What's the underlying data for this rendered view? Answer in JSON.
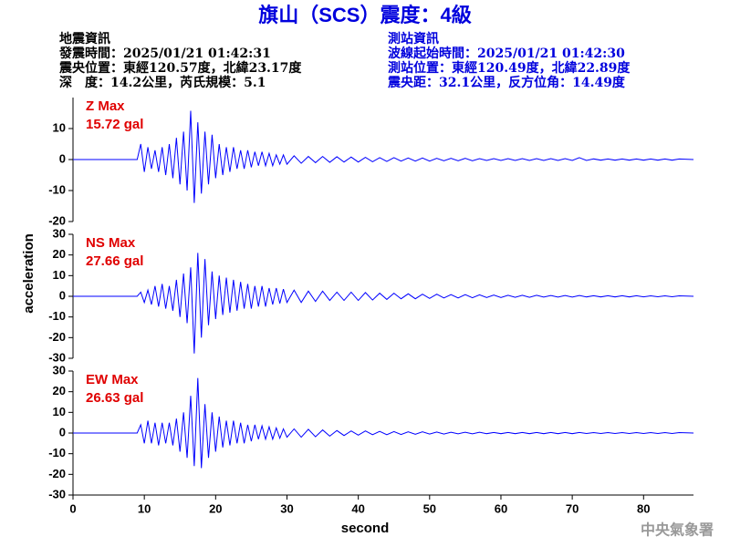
{
  "header": {
    "title": "旗山（SCS）震度：4級",
    "left": [
      "地震資訊",
      "發震時間：2025/01/21 01:42:31",
      "震央位置：東經120.57度，北緯23.17度",
      "深　度：14.2公里，芮氏規模：5.1"
    ],
    "right": [
      "測站資訊",
      "波線起始時間：2025/01/21 01:42:30",
      "測站位置：東經120.49度，北緯22.89度",
      "震央距：32.1公里，反方位角：14.49度"
    ]
  },
  "footer": "中央氣象署",
  "chart_data": [
    {
      "type": "line",
      "annotation": [
        "Z Max",
        "15.72 gal"
      ],
      "color": "#0000ff",
      "x": [
        0,
        9,
        9.5,
        10,
        10.5,
        11,
        11.5,
        12,
        12.5,
        13,
        13.5,
        14,
        14.5,
        15,
        15.5,
        16,
        16.5,
        17,
        17.5,
        18,
        18.5,
        19,
        19.5,
        20,
        20.5,
        21,
        21.5,
        22,
        22.5,
        23,
        23.5,
        24,
        24.5,
        25,
        25.5,
        26,
        26.5,
        27,
        27.5,
        28,
        28.5,
        29,
        29.5,
        30,
        31,
        32,
        33,
        34,
        35,
        36,
        37,
        38,
        39,
        40,
        41,
        42,
        43,
        44,
        45,
        46,
        47,
        48,
        49,
        50,
        51,
        52,
        53,
        54,
        55,
        56,
        57,
        58,
        59,
        60,
        61,
        62,
        63,
        64,
        65,
        66,
        67,
        68,
        69,
        70,
        71,
        72,
        73,
        74,
        75,
        76,
        77,
        78,
        79,
        80,
        81,
        82,
        83,
        84,
        85,
        87
      ],
      "values": [
        0,
        0,
        5,
        -4,
        4,
        -3,
        3,
        -4,
        4,
        -5,
        5,
        -6,
        7,
        -8,
        9,
        -10,
        15.72,
        -14,
        12,
        -11,
        9,
        -8,
        8,
        -6,
        5,
        -5,
        4,
        -4,
        4,
        -3,
        3,
        -3,
        3,
        -2.5,
        2.5,
        -2,
        2.5,
        -2,
        2,
        -2,
        1.5,
        -1.5,
        1.5,
        -1.5,
        1.2,
        -1.2,
        1,
        -1,
        1,
        -0.9,
        0.9,
        -0.8,
        0.8,
        -0.8,
        0.7,
        -0.7,
        0.6,
        -0.6,
        0.6,
        -0.5,
        0.5,
        -0.5,
        0.5,
        -0.5,
        0.4,
        -0.4,
        0.4,
        -0.4,
        0.4,
        -0.4,
        0.3,
        -0.3,
        0.3,
        -0.3,
        0.3,
        -0.3,
        0.3,
        -0.3,
        0.3,
        -0.3,
        0.3,
        -0.3,
        0.3,
        -0.3,
        0.6,
        -0.3,
        0.2,
        -0.2,
        0.2,
        -0.2,
        0.2,
        -0.2,
        0.2,
        -0.2,
        0.2,
        -0.2,
        0.2,
        -0.2,
        0.2,
        0
      ],
      "xlim": [
        0,
        87
      ],
      "ylim": [
        -20,
        20
      ],
      "yticks": [
        -20,
        -10,
        0,
        10
      ]
    },
    {
      "type": "line",
      "annotation": [
        "NS Max",
        "27.66 gal"
      ],
      "color": "#0000ff",
      "ylabel": "acceleration",
      "x": [
        0,
        9,
        9.5,
        10,
        10.5,
        11,
        11.5,
        12,
        12.5,
        13,
        13.5,
        14,
        14.5,
        15,
        15.5,
        16,
        16.5,
        17,
        17.5,
        18,
        18.5,
        19,
        19.5,
        20,
        20.5,
        21,
        21.5,
        22,
        22.5,
        23,
        23.5,
        24,
        24.5,
        25,
        25.5,
        26,
        26.5,
        27,
        27.5,
        28,
        28.5,
        29,
        29.5,
        30,
        31,
        32,
        33,
        34,
        35,
        36,
        37,
        38,
        39,
        40,
        41,
        42,
        43,
        44,
        45,
        46,
        47,
        48,
        49,
        50,
        51,
        52,
        53,
        54,
        55,
        56,
        57,
        58,
        59,
        60,
        61,
        62,
        63,
        64,
        65,
        66,
        67,
        68,
        69,
        70,
        71,
        72,
        73,
        74,
        75,
        76,
        77,
        78,
        79,
        80,
        81,
        82,
        83,
        84,
        85,
        87
      ],
      "values": [
        0,
        0,
        2,
        -3,
        3,
        -4,
        5,
        -5,
        6,
        -6,
        5,
        -7,
        8,
        -10,
        11,
        -13,
        14,
        -27.66,
        21,
        -20,
        18,
        -14,
        12,
        -11,
        10,
        -9,
        9,
        -8,
        8,
        -7,
        7,
        -6,
        6,
        -6,
        5,
        -5,
        5,
        -5,
        4,
        -4,
        4,
        -3.5,
        3.5,
        -3,
        3,
        -3,
        2.5,
        -2.5,
        2.5,
        -2,
        2,
        -2,
        2,
        -2,
        1.8,
        -1.8,
        1.5,
        -1.5,
        1.5,
        -1.2,
        1.2,
        -1.2,
        1,
        -1,
        1,
        -0.8,
        0.8,
        -0.8,
        0.8,
        -0.7,
        0.7,
        -0.6,
        0.6,
        -0.6,
        0.5,
        -0.5,
        0.5,
        -0.5,
        0.5,
        -0.4,
        0.4,
        -0.4,
        0.4,
        -0.4,
        0.4,
        -0.3,
        0.3,
        -0.3,
        0.3,
        -0.3,
        0.3,
        -0.3,
        0.3,
        -0.3,
        0.2,
        -0.2,
        0.2,
        -0.2,
        0.2,
        0
      ],
      "xlim": [
        0,
        87
      ],
      "ylim": [
        -30,
        30
      ],
      "yticks": [
        -30,
        -20,
        -10,
        0,
        10,
        20,
        30
      ]
    },
    {
      "type": "line",
      "annotation": [
        "EW Max",
        "26.63 gal"
      ],
      "color": "#0000ff",
      "xlabel": "second",
      "x": [
        0,
        9,
        9.5,
        10,
        10.5,
        11,
        11.5,
        12,
        12.5,
        13,
        13.5,
        14,
        14.5,
        15,
        15.5,
        16,
        16.5,
        17,
        17.5,
        18,
        18.5,
        19,
        19.5,
        20,
        20.5,
        21,
        21.5,
        22,
        22.5,
        23,
        23.5,
        24,
        24.5,
        25,
        25.5,
        26,
        26.5,
        27,
        27.5,
        28,
        28.5,
        29,
        29.5,
        30,
        31,
        32,
        33,
        34,
        35,
        36,
        37,
        38,
        39,
        40,
        41,
        42,
        43,
        44,
        45,
        46,
        47,
        48,
        49,
        50,
        51,
        52,
        53,
        54,
        55,
        56,
        57,
        58,
        59,
        60,
        61,
        62,
        63,
        64,
        65,
        66,
        67,
        68,
        69,
        70,
        71,
        72,
        73,
        74,
        75,
        76,
        77,
        78,
        79,
        80,
        81,
        82,
        83,
        84,
        85,
        87
      ],
      "values": [
        0,
        0,
        4,
        -5,
        6,
        -5,
        5,
        -6,
        5,
        -5,
        5,
        -6,
        7,
        -9,
        10,
        -12,
        18,
        -16,
        26.63,
        -17,
        14,
        -12,
        10,
        -9,
        8,
        -7,
        6,
        -6,
        6,
        -5,
        5,
        -5,
        4,
        -4,
        4,
        -3,
        3.5,
        -3,
        3,
        -3,
        2.5,
        -2.5,
        2,
        -2,
        2,
        -2,
        1.8,
        -1.8,
        1.5,
        -1.5,
        1.2,
        -1.2,
        1,
        -1,
        1,
        -0.8,
        0.8,
        -0.8,
        0.7,
        -0.7,
        0.6,
        -0.6,
        0.6,
        -0.5,
        0.5,
        -0.5,
        0.4,
        -0.4,
        0.4,
        -0.4,
        0.4,
        -0.3,
        0.3,
        -0.3,
        0.3,
        -0.3,
        0.3,
        -0.3,
        0.3,
        -0.3,
        0.3,
        -0.3,
        0.3,
        -0.3,
        0.3,
        -0.2,
        0.2,
        -0.2,
        0.2,
        -0.2,
        0.2,
        -0.2,
        0.2,
        -0.2,
        0.2,
        -0.2,
        0.2,
        -0.2,
        0.2,
        0
      ],
      "xlim": [
        0,
        87
      ],
      "ylim": [
        -30,
        30
      ],
      "yticks": [
        -30,
        -20,
        -10,
        0,
        10,
        20,
        30
      ],
      "xticks": [
        0,
        10,
        20,
        30,
        40,
        50,
        60,
        70,
        80
      ]
    }
  ]
}
